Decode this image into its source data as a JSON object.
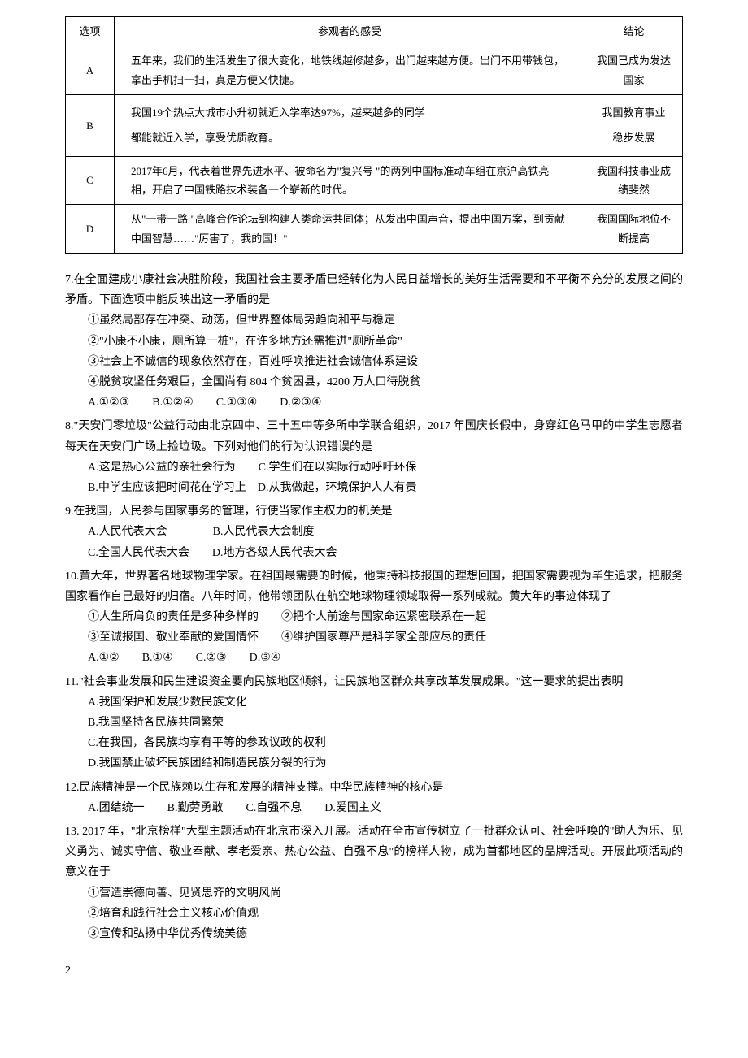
{
  "table": {
    "headers": [
      "选项",
      "参观者的感受",
      "结论"
    ],
    "rows": [
      {
        "option": "A",
        "feeling": "五年来，我们的生活发生了很大变化，地铁线越修越多，出门越来越方便。出门不用带钱包，拿出手机扫一扫，真是方便又快捷。",
        "conclusion": "我国已成为发达国家"
      },
      {
        "option": "B",
        "feeling_line1": "我国19个热点大城市小升初就近入学率达97%，越来越多的同学",
        "feeling_line2": "都能就近入学，享受优质教育。",
        "conclusion_line1": "我国教育事业",
        "conclusion_line2": "稳步发展"
      },
      {
        "option": "C",
        "feeling": "2017年6月，代表着世界先进水平、被命名为\"复兴号 \"的两列中国标准动车组在京沪高铁亮相，开启了中国铁路技术装备一个崭新的时代。",
        "conclusion": "我国科技事业成绩斐然"
      },
      {
        "option": "D",
        "feeling": "从\"一带一路 \"高峰合作论坛到构建人类命运共同体；从发出中国声音，提出中国方案，到贡献中国智慧……\"厉害了，我的国！\"",
        "conclusion": "我国国际地位不断提高"
      }
    ]
  },
  "q7": {
    "text": "7.在全面建成小康社会决胜阶段，我国社会主要矛盾已经转化为人民日益增长的美好生活需要和不平衡不充分的发展之间的矛盾。下面选项中能反映出这一矛盾的是",
    "opts": [
      "①虽然局部存在冲突、动荡，但世界整体局势趋向和平与稳定",
      "②\"小康不小康，厕所算一桩\"，在许多地方还需推进\"厕所革命\"",
      "③社会上不诚信的现象依然存在，百姓呼唤推进社会诚信体系建设",
      "④脱贫攻坚任务艰巨，全国尚有 804 个贫困县，4200 万人口待脱贫"
    ],
    "answers": "A.①②③　　B.①②④　　C.①③④　　D.②③④"
  },
  "q8": {
    "text": "8.\"天安门零垃圾\"公益行动由北京四中、三十五中等多所中学联合组织，2017 年国庆长假中，身穿红色马甲的中学生志愿者每天在天安门广场上捡垃圾。下列对他们的行为认识错误的是",
    "a": "A.这是热心公益的亲社会行为　　C.学生们在以实际行动呼吁环保",
    "b": "B.中学生应该把时间花在学习上　D.从我做起，环境保护人人有责"
  },
  "q9": {
    "text": "9.在我国，人民参与国家事务的管理，行使当家作主权力的机关是",
    "a": "A.人民代表大会　　　　B.人民代表大会制度",
    "b": "C.全国人民代表大会　　D.地方各级人民代表大会"
  },
  "q10": {
    "text": "10.黄大年，世界著名地球物理学家。在祖国最需要的时候，他秉持科技报国的理想回国，把国家需要视为毕生追求，把服务国家看作自己最好的归宿。八年时间，他带领团队在航空地球物理领域取得一系列成就。黄大年的事迹体现了",
    "opts": [
      "①人生所肩负的责任是多种多样的　　②把个人前途与国家命运紧密联系在一起",
      "③至诚报国、敬业奉献的爱国情怀　　④维护国家尊严是科学家全部应尽的责任"
    ],
    "answers": "A.①②　　B.①④　　C.②③　　D.③④"
  },
  "q11": {
    "text": "11.\"社会事业发展和民生建设资金要向民族地区倾斜，让民族地区群众共享改革发展成果。\"这一要求的提出表明",
    "opts": [
      "A.我国保护和发展少数民族文化",
      "B.我国坚持各民族共同繁荣",
      "C.在我国，各民族均享有平等的参政议政的权利",
      "D.我国禁止破坏民族团结和制造民族分裂的行为"
    ]
  },
  "q12": {
    "text": "12.民族精神是一个民族赖以生存和发展的精神支撑。中华民族精神的核心是",
    "answers": "A.团结统一　　B.勤劳勇敢　　C.自强不息　　D.爱国主义"
  },
  "q13": {
    "text": "13. 2017 年，\"北京榜样\"大型主题活动在北京市深入开展。活动在全市宣传树立了一批群众认可、社会呼唤的\"助人为乐、见义勇为、诚实守信、敬业奉献、孝老爱亲、热心公益、自强不息\"的榜样人物，成为首都地区的品牌活动。开展此项活动的意义在于",
    "opts": [
      "①营造崇德向善、见贤思齐的文明风尚",
      "②培育和践行社会主义核心价值观",
      "③宣传和弘扬中华优秀传统美德"
    ]
  },
  "page_num": "2"
}
